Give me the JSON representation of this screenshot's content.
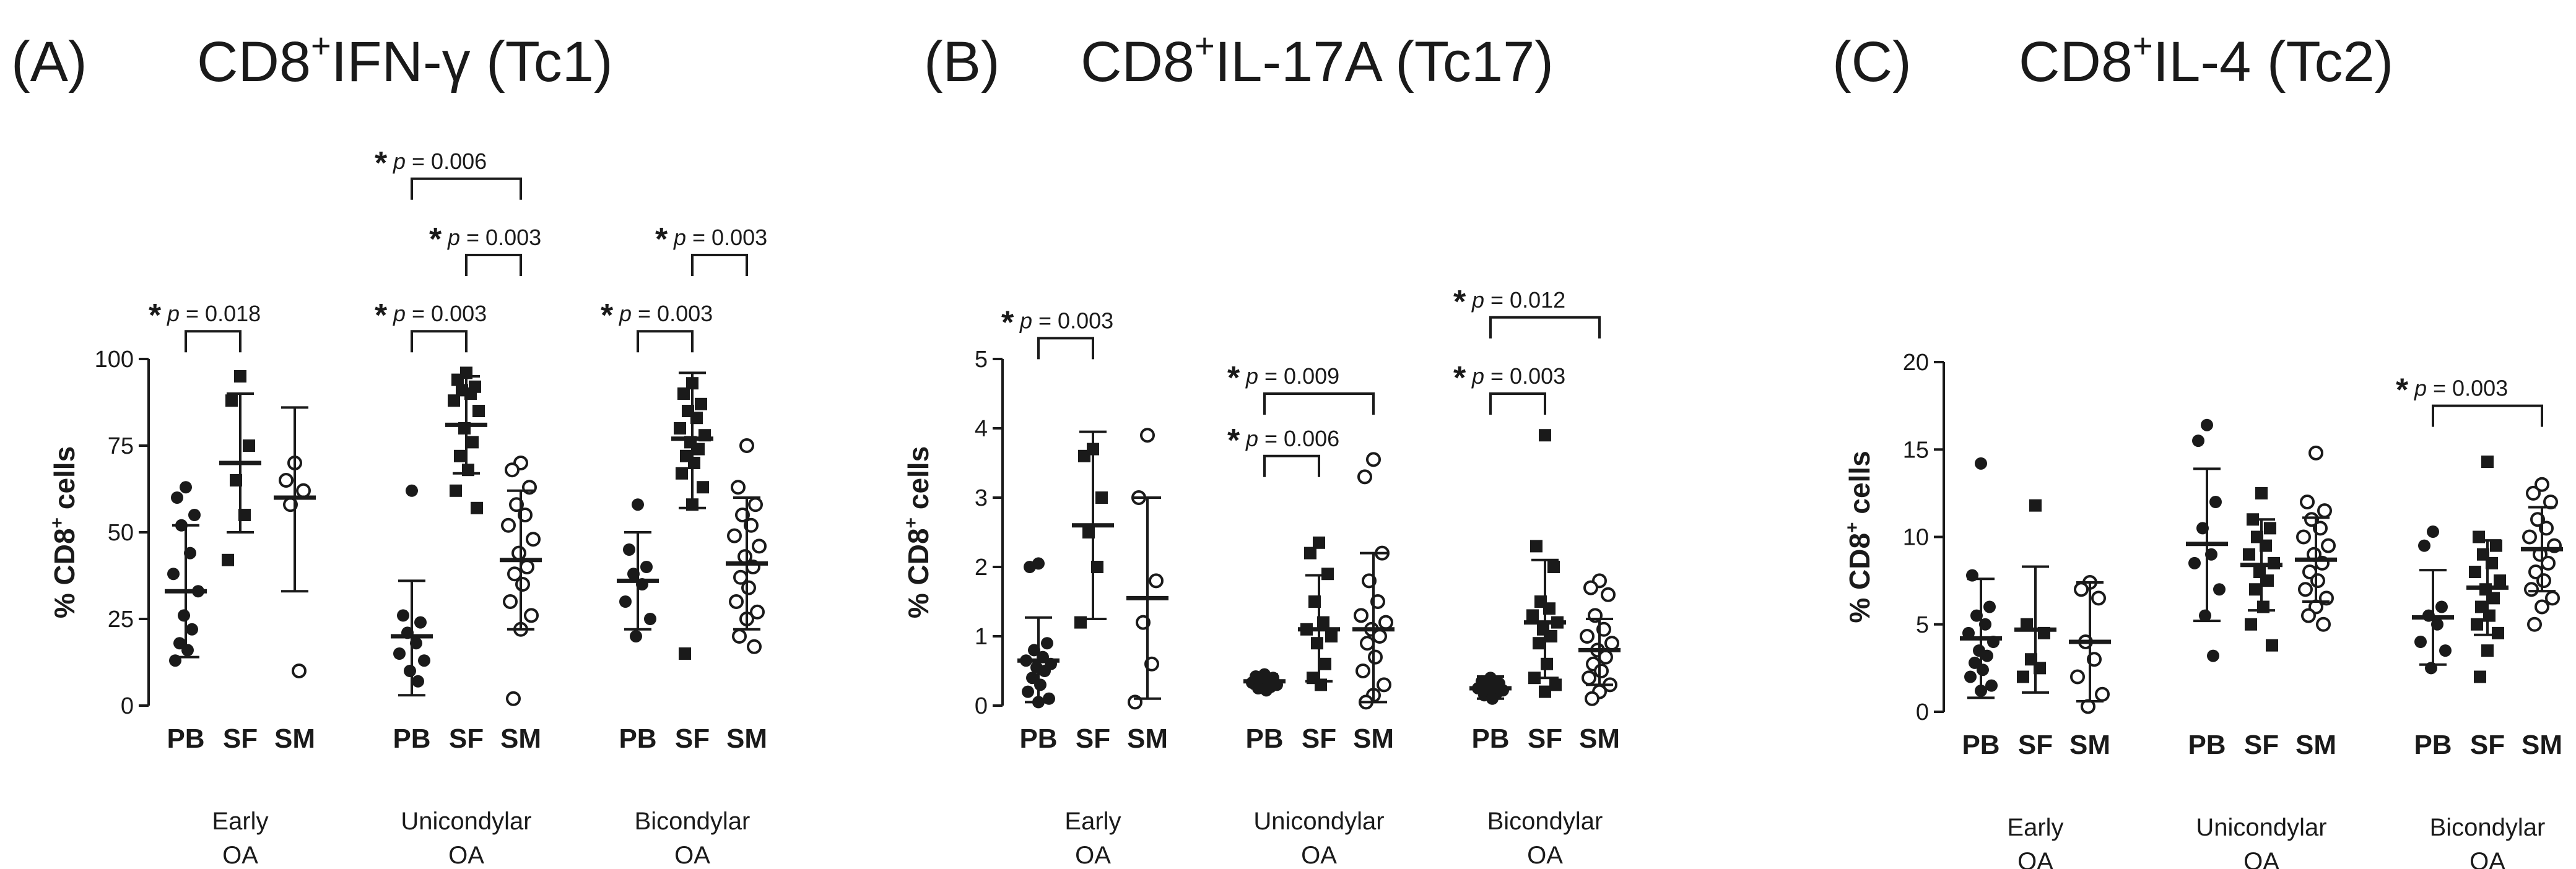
{
  "chart_data": [
    {
      "type": "scatter",
      "panel_label": "(A)",
      "title": {
        "main": "CD8",
        "sup": "+",
        "rest": "IFN-γ (Tc1)"
      },
      "ylabel": {
        "main": "% CD8",
        "sup": "+",
        "rest": " cells"
      },
      "ylim": [
        0,
        100
      ],
      "yticks": [
        "0",
        "25",
        "50",
        "75",
        "100"
      ],
      "groups": [
        {
          "label": "Early\nOA",
          "samples": [
            {
              "name": "PB",
              "marker": "filled-circle",
              "mean": 33,
              "sd": [
                14,
                52
              ],
              "points": [
                63,
                60,
                55,
                52,
                44,
                38,
                33,
                26,
                22,
                18,
                16,
                13
              ]
            },
            {
              "name": "SF",
              "marker": "filled-square",
              "mean": 70,
              "sd": [
                50,
                90
              ],
              "points": [
                95,
                88,
                75,
                65,
                55,
                42
              ]
            },
            {
              "name": "SM",
              "marker": "open-circle",
              "mean": 60,
              "sd": [
                33,
                86
              ],
              "points": [
                70,
                65,
                62,
                58,
                10
              ]
            }
          ]
        },
        {
          "label": "Unicondylar\nOA",
          "samples": [
            {
              "name": "PB",
              "marker": "filled-circle",
              "mean": 20,
              "sd": [
                3,
                36
              ],
              "points": [
                62,
                26,
                24,
                21,
                18,
                15,
                13,
                10,
                7
              ]
            },
            {
              "name": "SF",
              "marker": "filled-square",
              "mean": 81,
              "sd": [
                67,
                95
              ],
              "points": [
                96,
                94,
                92,
                91,
                90,
                88,
                85,
                80,
                76,
                72,
                68,
                62,
                57
              ]
            },
            {
              "name": "SM",
              "marker": "open-circle",
              "mean": 42,
              "sd": [
                22,
                62
              ],
              "points": [
                70,
                68,
                63,
                58,
                55,
                52,
                48,
                44,
                40,
                38,
                35,
                30,
                26,
                22,
                2
              ]
            }
          ]
        },
        {
          "label": "Bicondylar\nOA",
          "samples": [
            {
              "name": "PB",
              "marker": "filled-circle",
              "mean": 36,
              "sd": [
                22,
                50
              ],
              "points": [
                58,
                45,
                40,
                38,
                35,
                30,
                25,
                20
              ]
            },
            {
              "name": "SF",
              "marker": "filled-square",
              "mean": 77,
              "sd": [
                57,
                96
              ],
              "points": [
                93,
                90,
                87,
                85,
                83,
                80,
                78,
                76,
                74,
                72,
                70,
                67,
                63,
                58,
                15
              ]
            },
            {
              "name": "SM",
              "marker": "open-circle",
              "mean": 41,
              "sd": [
                22,
                60
              ],
              "points": [
                75,
                63,
                58,
                55,
                52,
                49,
                46,
                43,
                40,
                37,
                34,
                30,
                27,
                25,
                20,
                17
              ]
            }
          ]
        }
      ],
      "comparisons": [
        {
          "group": 0,
          "from": 0,
          "to": 1,
          "text": "p = 0.018",
          "level": 108
        },
        {
          "group": 1,
          "from": 0,
          "to": 1,
          "text": "p = 0.003",
          "level": 108
        },
        {
          "group": 1,
          "from": 1,
          "to": 2,
          "text": "p = 0.003",
          "level": 130
        },
        {
          "group": 1,
          "from": 0,
          "to": 2,
          "text": "p = 0.006",
          "level": 152
        },
        {
          "group": 2,
          "from": 0,
          "to": 1,
          "text": "p = 0.003",
          "level": 108
        },
        {
          "group": 2,
          "from": 1,
          "to": 2,
          "text": "p = 0.003",
          "level": 130
        }
      ]
    },
    {
      "type": "scatter",
      "panel_label": "(B)",
      "title": {
        "main": "CD8",
        "sup": "+",
        "rest": "IL-17A (Tc17)"
      },
      "ylabel": {
        "main": "% CD8",
        "sup": "+",
        "rest": " cells"
      },
      "ylim": [
        0,
        5
      ],
      "yticks": [
        "0",
        "1",
        "2",
        "3",
        "4",
        "5"
      ],
      "groups": [
        {
          "label": "Early\nOA",
          "samples": [
            {
              "name": "PB",
              "marker": "filled-circle",
              "mean": 0.65,
              "sd": [
                0.05,
                1.27
              ],
              "points": [
                2.05,
                2.0,
                0.9,
                0.8,
                0.7,
                0.65,
                0.6,
                0.55,
                0.5,
                0.4,
                0.3,
                0.2,
                0.1,
                0.05
              ]
            },
            {
              "name": "SF",
              "marker": "filled-square",
              "mean": 2.6,
              "sd": [
                1.25,
                3.95
              ],
              "points": [
                3.7,
                3.6,
                3.0,
                2.5,
                2.0,
                1.2
              ]
            },
            {
              "name": "SM",
              "marker": "open-circle",
              "mean": 1.55,
              "sd": [
                0.1,
                3.0
              ],
              "points": [
                3.9,
                3.0,
                1.8,
                1.2,
                0.6,
                0.05
              ]
            }
          ]
        },
        {
          "label": "Unicondylar\nOA",
          "samples": [
            {
              "name": "PB",
              "marker": "filled-circle",
              "mean": 0.35,
              "sd": [
                0.25,
                0.45
              ],
              "points": [
                0.45,
                0.42,
                0.4,
                0.38,
                0.35,
                0.33,
                0.3,
                0.28,
                0.27,
                0.25,
                0.22
              ]
            },
            {
              "name": "SF",
              "marker": "filled-square",
              "mean": 1.1,
              "sd": [
                0.35,
                1.88
              ],
              "points": [
                2.35,
                2.2,
                1.9,
                1.5,
                1.2,
                1.1,
                1.0,
                0.9,
                0.6,
                0.4,
                0.3
              ]
            },
            {
              "name": "SM",
              "marker": "open-circle",
              "mean": 1.1,
              "sd": [
                0.05,
                2.2
              ],
              "points": [
                3.55,
                3.3,
                2.2,
                1.8,
                1.5,
                1.3,
                1.2,
                1.1,
                1.0,
                0.9,
                0.7,
                0.5,
                0.3,
                0.15,
                0.05
              ]
            }
          ]
        },
        {
          "label": "Bicondylar\nOA",
          "samples": [
            {
              "name": "PB",
              "marker": "filled-circle",
              "mean": 0.25,
              "sd": [
                0.1,
                0.42
              ],
              "points": [
                0.4,
                0.35,
                0.32,
                0.3,
                0.28,
                0.25,
                0.22,
                0.2,
                0.18,
                0.15,
                0.1
              ]
            },
            {
              "name": "SF",
              "marker": "filled-square",
              "mean": 1.2,
              "sd": [
                0.4,
                2.1
              ],
              "points": [
                3.9,
                2.3,
                2.0,
                1.5,
                1.4,
                1.3,
                1.2,
                1.1,
                1.0,
                0.9,
                0.6,
                0.4,
                0.3,
                0.2
              ]
            },
            {
              "name": "SM",
              "marker": "open-circle",
              "mean": 0.8,
              "sd": [
                0.3,
                1.25
              ],
              "points": [
                1.8,
                1.7,
                1.6,
                1.3,
                1.1,
                1.0,
                0.9,
                0.8,
                0.7,
                0.6,
                0.5,
                0.4,
                0.3,
                0.2,
                0.1
              ]
            }
          ]
        }
      ],
      "comparisons": [
        {
          "group": 0,
          "from": 0,
          "to": 1,
          "text": "p = 0.003",
          "level": 5.3
        },
        {
          "group": 1,
          "from": 0,
          "to": 1,
          "text": "p = 0.006",
          "level": 3.6
        },
        {
          "group": 1,
          "from": 0,
          "to": 2,
          "text": "p = 0.009",
          "level": 4.5
        },
        {
          "group": 2,
          "from": 0,
          "to": 1,
          "text": "p = 0.003",
          "level": 4.5
        },
        {
          "group": 2,
          "from": 0,
          "to": 2,
          "text": "p = 0.012",
          "level": 5.6
        }
      ]
    },
    {
      "type": "scatter",
      "panel_label": "(C)",
      "title": {
        "main": "CD8",
        "sup": "+",
        "rest": "IL-4 (Tc2)"
      },
      "ylabel": {
        "main": "% CD8",
        "sup": "+",
        "rest": " cells"
      },
      "ylim": [
        0,
        20
      ],
      "yticks": [
        "0",
        "5",
        "10",
        "15",
        "20"
      ],
      "groups": [
        {
          "label": "Early\nOA",
          "samples": [
            {
              "name": "PB",
              "marker": "filled-circle",
              "mean": 4.2,
              "sd": [
                0.8,
                7.6
              ],
              "points": [
                14.2,
                7.8,
                6.0,
                5.5,
                5.0,
                4.5,
                4.0,
                3.5,
                3.2,
                2.8,
                2.4,
                2.0,
                1.5,
                1.2
              ]
            },
            {
              "name": "SF",
              "marker": "filled-square",
              "mean": 4.7,
              "sd": [
                1.1,
                8.3
              ],
              "points": [
                11.8,
                5.0,
                4.5,
                3.0,
                2.5,
                2.0
              ]
            },
            {
              "name": "SM",
              "marker": "open-circle",
              "mean": 4.0,
              "sd": [
                0.6,
                7.4
              ],
              "points": [
                7.4,
                7.0,
                6.5,
                4.0,
                3.0,
                2.0,
                1.0,
                0.3
              ]
            }
          ]
        },
        {
          "label": "Unicondylar\nOA",
          "samples": [
            {
              "name": "PB",
              "marker": "filled-circle",
              "mean": 9.6,
              "sd": [
                5.2,
                13.9
              ],
              "points": [
                16.4,
                15.5,
                12.0,
                10.5,
                9.0,
                8.5,
                7.0,
                5.5,
                3.2
              ]
            },
            {
              "name": "SF",
              "marker": "filled-square",
              "mean": 8.4,
              "sd": [
                5.8,
                11.0
              ],
              "points": [
                12.5,
                11.0,
                10.5,
                10.0,
                9.5,
                9.0,
                8.5,
                8.0,
                7.5,
                7.0,
                6.0,
                5.0,
                3.8
              ]
            },
            {
              "name": "SM",
              "marker": "open-circle",
              "mean": 8.7,
              "sd": [
                6.3,
                11.1
              ],
              "points": [
                14.8,
                12.0,
                11.5,
                11.0,
                10.5,
                10.0,
                9.5,
                9.0,
                8.5,
                8.0,
                7.5,
                7.0,
                6.5,
                6.0,
                5.5,
                5.0
              ]
            }
          ]
        },
        {
          "label": "Bicondylar\nOA",
          "samples": [
            {
              "name": "PB",
              "marker": "filled-circle",
              "mean": 5.4,
              "sd": [
                2.7,
                8.1
              ],
              "points": [
                10.3,
                9.5,
                6.0,
                5.5,
                5.0,
                4.0,
                3.5,
                2.5
              ]
            },
            {
              "name": "SF",
              "marker": "filled-square",
              "mean": 7.1,
              "sd": [
                4.4,
                9.8
              ],
              "points": [
                14.3,
                10.0,
                9.5,
                9.0,
                8.5,
                8.0,
                7.5,
                7.0,
                6.5,
                6.0,
                5.5,
                5.0,
                4.5,
                3.5,
                2.0
              ]
            },
            {
              "name": "SM",
              "marker": "open-circle",
              "mean": 9.3,
              "sd": [
                6.9,
                11.7
              ],
              "points": [
                13.0,
                12.5,
                12.0,
                11.0,
                10.5,
                10.0,
                9.5,
                9.0,
                8.5,
                8.0,
                7.5,
                7.0,
                6.5,
                6.0,
                5.0
              ]
            }
          ]
        }
      ],
      "comparisons": [
        {
          "group": 2,
          "from": 0,
          "to": 2,
          "text": "p = 0.003",
          "level": 17.5
        }
      ]
    }
  ]
}
